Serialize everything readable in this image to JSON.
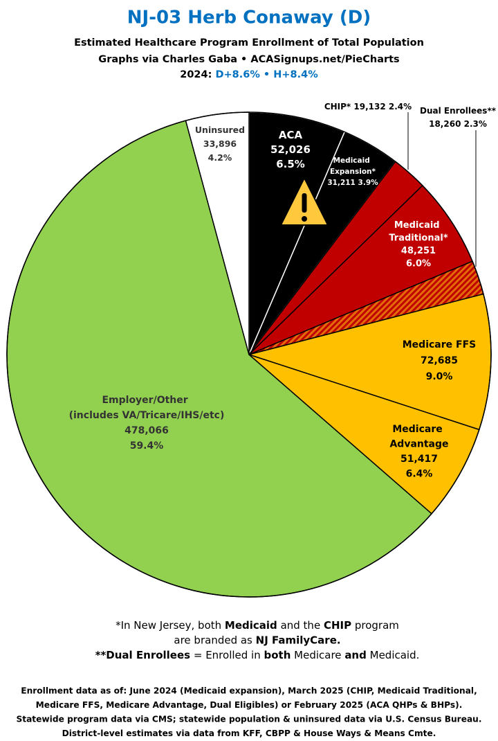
{
  "chart_data": {
    "type": "pie",
    "title": "NJ-03 Herb Conaway (D)",
    "subtitle_lines": [
      "Estimated Healthcare Program Enrollment of Total Population",
      "Graphs via Charles Gaba  •  ACASignups.net/PieCharts"
    ],
    "lean": {
      "prefix": "2024:",
      "d": "D+8.6%",
      "sep": "•",
      "h": "H+8.4%"
    },
    "categories": [
      "ACA",
      "Medicaid Expansion*",
      "CHIP*",
      "Medicaid Traditional*",
      "Dual Enrollees**",
      "Medicare FFS",
      "Medicare Advantage",
      "Employer/Other (includes VA/Tricare/IHS/etc)",
      "Uninsured"
    ],
    "values": [
      52026,
      31211,
      19132,
      48251,
      18260,
      72685,
      51417,
      478066,
      33896
    ],
    "value_labels": [
      "52,026",
      "31,211",
      "19,132",
      "48,251",
      "18,260",
      "72,685",
      "51,417",
      "478,066",
      "33,896"
    ],
    "percents": [
      6.5,
      3.9,
      2.4,
      6.0,
      2.3,
      9.0,
      6.4,
      59.4,
      4.2
    ],
    "percent_labels": [
      "6.5%",
      "3.9%",
      "2.4%",
      "6.0%",
      "2.3%",
      "9.0%",
      "6.4%",
      "59.4%",
      "4.2%"
    ],
    "colors": [
      "#000000",
      "#000000",
      "#c00000",
      "#c00000",
      "hatch",
      "#ffc000",
      "#ffc000",
      "#92d050",
      "#ffffff"
    ],
    "notes": [
      [
        {
          "text": "*In New Jersey, both "
        },
        {
          "text": "Medicaid",
          "bold": true
        },
        {
          "text": " and the "
        },
        {
          "text": "CHIP",
          "bold": true
        },
        {
          "text": " program"
        }
      ],
      [
        {
          "text": "are branded as "
        },
        {
          "text": "NJ FamilyCare.",
          "bold": true
        }
      ],
      [
        {
          "text": "**Dual Enrollees",
          "bold": true
        },
        {
          "text": " = Enrolled in "
        },
        {
          "text": "both",
          "bold": true
        },
        {
          "text": " Medicare "
        },
        {
          "text": "and",
          "bold": true
        },
        {
          "text": " Medicaid."
        }
      ]
    ],
    "footer": [
      "Enrollment data as of: June 2024 (Medicaid expansion), March 2025 (CHIP, Medicaid Traditional,",
      "Medicare FFS, Medicare Advantage, Dual Eligibles) or February 2025 (ACA QHPs & BHPs).",
      "Statewide program data via CMS; statewide population & uninsured data via U.S. Census Bureau.",
      "District-level estimates via data from KFF, CBPP & House Ways & Means Cmte."
    ]
  }
}
